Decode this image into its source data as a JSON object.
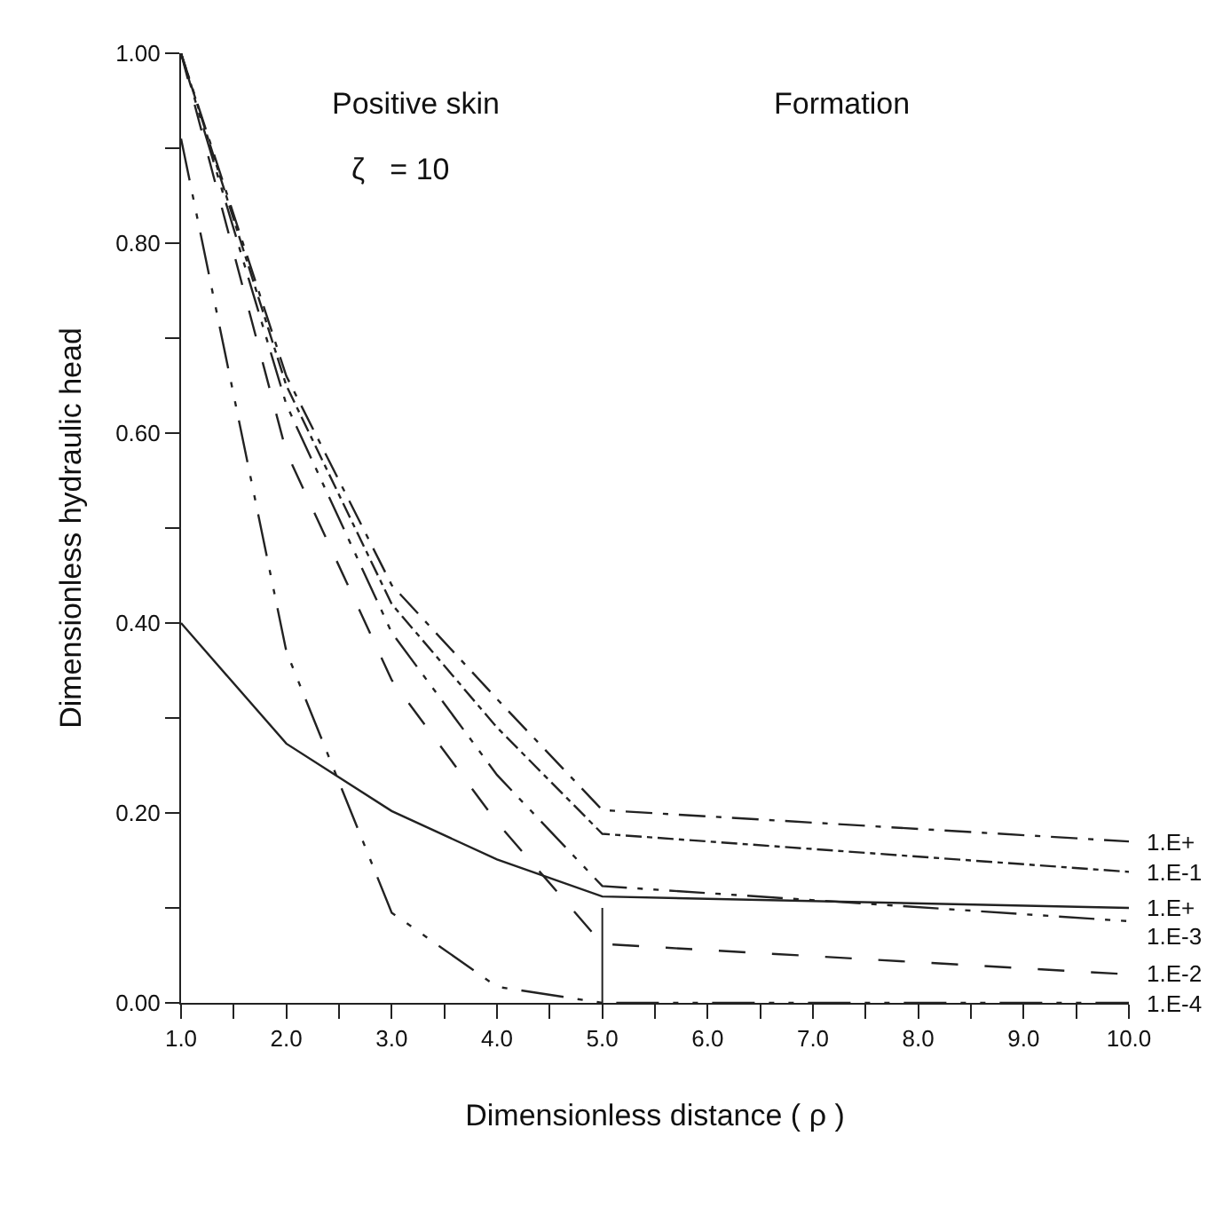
{
  "chart_data": {
    "type": "line",
    "xlabel": "Dimensionless distance ( ρ )",
    "ylabel": "Dimensionless hydraulic head",
    "annotations": [
      "Positive skin",
      "ζ   = 10",
      "Formation"
    ],
    "x": [
      1,
      2,
      3,
      4,
      5,
      10
    ],
    "series": [
      {
        "name": "1.E+",
        "color": "#222222",
        "line_style": "dashed",
        "values": [
          1.0,
          0.66,
          0.44,
          0.32,
          0.203,
          0.17
        ]
      },
      {
        "name": "1.E-1",
        "color": "#222222",
        "line_style": "dashed",
        "values": [
          1.0,
          0.65,
          0.42,
          0.29,
          0.178,
          0.138
        ]
      },
      {
        "name": "1.E+",
        "color": "#222222",
        "line_style": "solid",
        "values": [
          0.4,
          0.273,
          0.202,
          0.151,
          0.112,
          0.1
        ]
      },
      {
        "name": "1.E-3",
        "color": "#222222",
        "line_style": "dashed",
        "values": [
          1.0,
          0.63,
          0.39,
          0.24,
          0.123,
          0.086
        ]
      },
      {
        "name": "1.E-2",
        "color": "#222222",
        "line_style": "dashed",
        "values": [
          1.0,
          0.58,
          0.34,
          0.19,
          0.062,
          0.03
        ]
      },
      {
        "name": "1.E-4",
        "color": "#222222",
        "line_style": "dashed",
        "values": [
          0.91,
          0.37,
          0.095,
          0.017,
          0.0,
          0.0
        ]
      }
    ],
    "ref_lines": [
      {
        "axis": "x",
        "value": 5
      }
    ],
    "xlim": [
      1,
      10
    ],
    "ylim": [
      0,
      1
    ],
    "xticks": [
      {
        "value": 1,
        "label": "1.0"
      },
      {
        "value": 1.5,
        "label": null
      },
      {
        "value": 2,
        "label": "2.0"
      },
      {
        "value": 2.5,
        "label": null
      },
      {
        "value": 3,
        "label": "3.0"
      },
      {
        "value": 3.5,
        "label": null
      },
      {
        "value": 4,
        "label": "4.0"
      },
      {
        "value": 4.5,
        "label": null
      },
      {
        "value": 5,
        "label": "5.0"
      },
      {
        "value": 5.5,
        "label": null
      },
      {
        "value": 6,
        "label": "6.0"
      },
      {
        "value": 6.5,
        "label": null
      },
      {
        "value": 7,
        "label": "7.0"
      },
      {
        "value": 7.5,
        "label": null
      },
      {
        "value": 8,
        "label": "8.0"
      },
      {
        "value": 8.5,
        "label": null
      },
      {
        "value": 9,
        "label": "9.0"
      },
      {
        "value": 9.5,
        "label": null
      },
      {
        "value": 10,
        "label": "10.0"
      }
    ],
    "yticks": [
      {
        "value": 0,
        "label": "0.00"
      },
      {
        "value": 0.1,
        "label": null
      },
      {
        "value": 0.2,
        "label": "0.20"
      },
      {
        "value": 0.3,
        "label": null
      },
      {
        "value": 0.4,
        "label": "0.40"
      },
      {
        "value": 0.5,
        "label": null
      },
      {
        "value": 0.6,
        "label": "0.60"
      },
      {
        "value": 0.7,
        "label": null
      },
      {
        "value": 0.8,
        "label": "0.80"
      },
      {
        "value": 0.9,
        "label": null
      },
      {
        "value": 1.0,
        "label": "1.00"
      }
    ],
    "legend": false,
    "marker": "none"
  }
}
